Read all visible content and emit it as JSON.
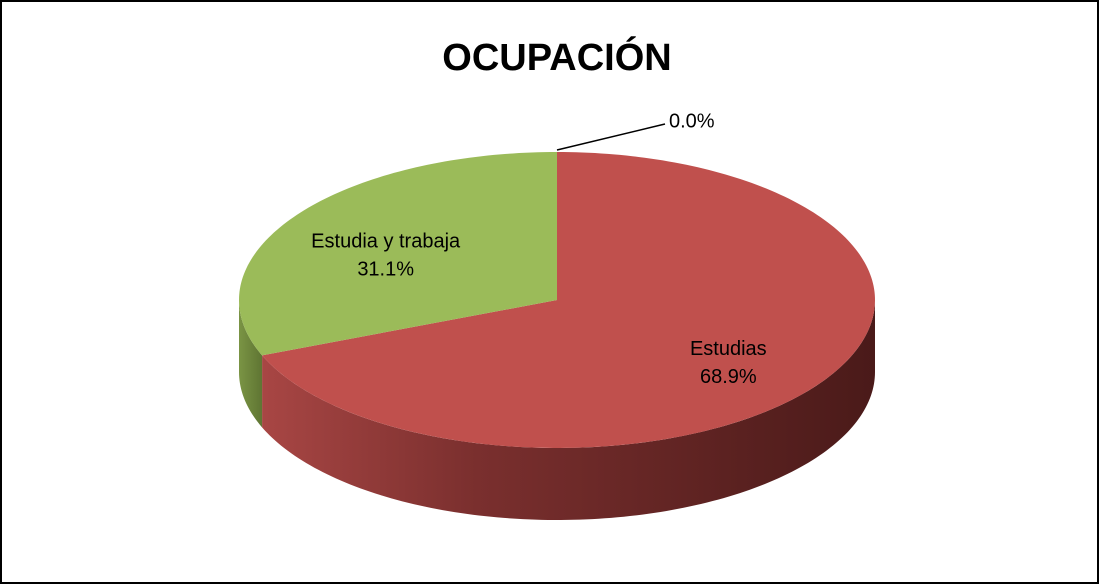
{
  "chart_data": {
    "type": "pie",
    "title": "OCUPACIÓN",
    "categories": [
      "Estudias",
      "Estudia y trabaja",
      null
    ],
    "values": [
      68.9,
      31.1,
      0.0
    ],
    "value_labels": [
      "68.9%",
      "31.1%",
      "0.0%"
    ],
    "colors": [
      "#c0504d",
      "#9bbb59",
      "#4f81bd"
    ],
    "three_d": true
  }
}
